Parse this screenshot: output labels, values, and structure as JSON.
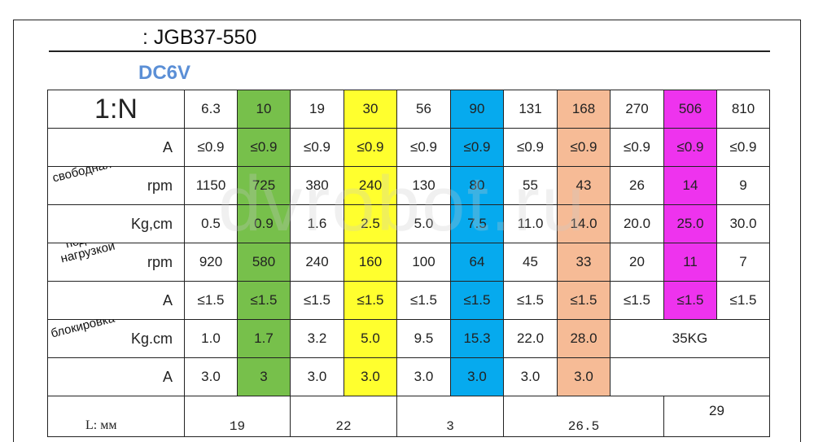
{
  "header": {
    "model": ": JGB37-550",
    "voltage": "DC6V",
    "watermark": "dvrobot.ru"
  },
  "table": {
    "ratio_label": "1:N",
    "ratios": [
      "6.3",
      "10",
      "19",
      "30",
      "56",
      "90",
      "131",
      "168",
      "270",
      "506",
      "810"
    ],
    "highlight_colors": {
      "green": "#77c04b",
      "yellow": "#ffff2e",
      "blue": "#06aaee",
      "orange": "#f6bb96",
      "magenta": "#ee33ee"
    },
    "free_run": {
      "section_label": "свободная",
      "current_label": "A",
      "current": [
        "≤0.9",
        "≤0.9",
        "≤0.9",
        "≤0.9",
        "≤0.9",
        "≤0.9",
        "≤0.9",
        "≤0.9",
        "≤0.9",
        "≤0.9",
        "≤0.9"
      ],
      "speed_label": "rpm",
      "speed": [
        "1150",
        "725",
        "380",
        "240",
        "130",
        "80",
        "55",
        "43",
        "26",
        "14",
        "9"
      ]
    },
    "load": {
      "section_label_1": "под",
      "section_label_2": "нагрузкой",
      "torque_label": "Kg,cm",
      "torque": [
        "0.5",
        "0.9",
        "1.6",
        "2.5",
        "5.0",
        "7.5",
        "11.0",
        "14.0",
        "20.0",
        "25.0",
        "30.0"
      ],
      "speed_label": "rpm",
      "speed": [
        "920",
        "580",
        "240",
        "160",
        "100",
        "64",
        "45",
        "33",
        "20",
        "11",
        "7"
      ],
      "current_label": "A",
      "current": [
        "≤1.5",
        "≤1.5",
        "≤1.5",
        "≤1.5",
        "≤1.5",
        "≤1.5",
        "≤1.5",
        "≤1.5",
        "≤1.5",
        "≤1.5",
        "≤1.5"
      ]
    },
    "stall": {
      "section_label": "блокировка",
      "torque_label": "Kg.cm",
      "torque": [
        "1.0",
        "1.7",
        "3.2",
        "5.0",
        "9.5",
        "15.3",
        "22.0",
        "28.0"
      ],
      "torque_merged": "35KG",
      "current_label": "A",
      "current": [
        "3.0",
        "3",
        "3.0",
        "3.0",
        "3.0",
        "3.0",
        "3.0",
        "3.0"
      ]
    },
    "length": {
      "label": "L: мм",
      "values": [
        "19",
        "22",
        "3",
        "26.5",
        "29"
      ]
    }
  }
}
